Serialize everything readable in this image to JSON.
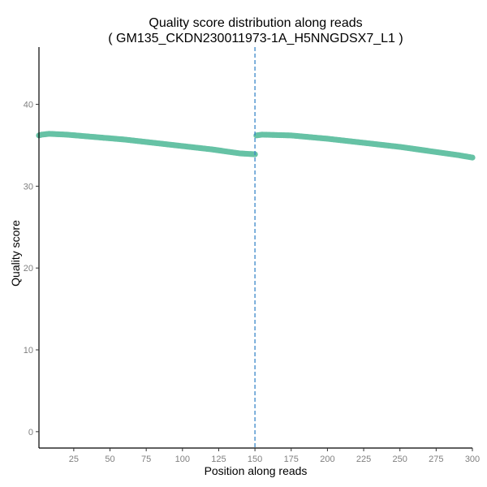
{
  "chart_data": {
    "type": "scatter",
    "title": "Quality score distribution along reads",
    "subtitle": "( GM135_CKDN230011973-1A_H5NNGDSX7_L1 )",
    "xlabel": "Position along reads",
    "ylabel": "Quality score",
    "xlim": [
      1,
      300
    ],
    "ylim": [
      -2,
      47
    ],
    "xticks": [
      25,
      50,
      75,
      100,
      125,
      150,
      175,
      200,
      225,
      250,
      275,
      300
    ],
    "yticks": [
      0,
      10,
      20,
      30,
      40
    ],
    "grid": false,
    "legend": "none",
    "vline": {
      "x": 150,
      "style": "dashed",
      "color": "#3a87c8"
    },
    "point_color": "#66c2a5",
    "segments": [
      {
        "name": "",
        "x_start": 1,
        "x_end": 150,
        "y_points": [
          [
            1,
            36.2
          ],
          [
            3,
            36.3
          ],
          [
            8,
            36.4
          ],
          [
            20,
            36.3
          ],
          [
            40,
            36.0
          ],
          [
            60,
            35.7
          ],
          [
            80,
            35.3
          ],
          [
            100,
            34.9
          ],
          [
            120,
            34.5
          ],
          [
            140,
            34.0
          ],
          [
            150,
            33.9
          ]
        ]
      },
      {
        "name": "",
        "x_start": 151,
        "x_end": 300,
        "y_points": [
          [
            151,
            36.2
          ],
          [
            155,
            36.3
          ],
          [
            175,
            36.2
          ],
          [
            200,
            35.8
          ],
          [
            225,
            35.3
          ],
          [
            250,
            34.8
          ],
          [
            270,
            34.3
          ],
          [
            290,
            33.8
          ],
          [
            300,
            33.5
          ]
        ]
      }
    ]
  }
}
